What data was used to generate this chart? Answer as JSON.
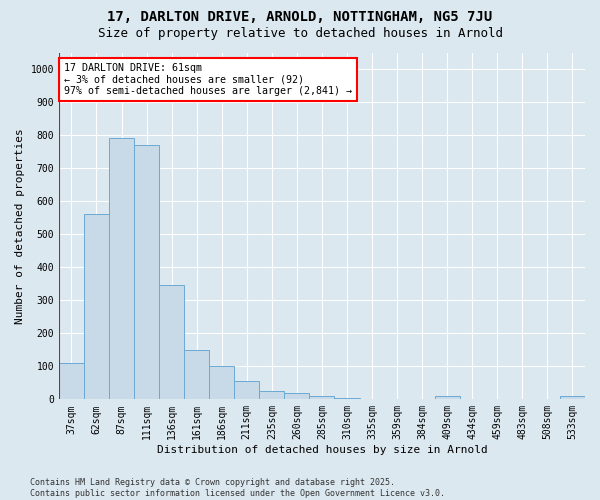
{
  "title_line1": "17, DARLTON DRIVE, ARNOLD, NOTTINGHAM, NG5 7JU",
  "title_line2": "Size of property relative to detached houses in Arnold",
  "xlabel": "Distribution of detached houses by size in Arnold",
  "ylabel": "Number of detached properties",
  "background_color": "#dce8f0",
  "bar_color": "#c8d9e8",
  "bar_edge_color": "#6aaad4",
  "categories": [
    "37sqm",
    "62sqm",
    "87sqm",
    "111sqm",
    "136sqm",
    "161sqm",
    "186sqm",
    "211sqm",
    "235sqm",
    "260sqm",
    "285sqm",
    "310sqm",
    "335sqm",
    "359sqm",
    "384sqm",
    "409sqm",
    "434sqm",
    "459sqm",
    "483sqm",
    "508sqm",
    "533sqm"
  ],
  "values": [
    110,
    560,
    790,
    770,
    345,
    150,
    100,
    55,
    25,
    20,
    10,
    5,
    0,
    0,
    0,
    10,
    0,
    0,
    0,
    0,
    10
  ],
  "ylim": [
    0,
    1050
  ],
  "yticks": [
    0,
    100,
    200,
    300,
    400,
    500,
    600,
    700,
    800,
    900,
    1000
  ],
  "marker_label": "17 DARLTON DRIVE: 61sqm\n← 3% of detached houses are smaller (92)\n97% of semi-detached houses are larger (2,841) →",
  "footer_line1": "Contains HM Land Registry data © Crown copyright and database right 2025.",
  "footer_line2": "Contains public sector information licensed under the Open Government Licence v3.0.",
  "grid_color": "#ffffff",
  "title_fontsize": 10,
  "subtitle_fontsize": 9,
  "tick_fontsize": 7,
  "label_fontsize": 8,
  "footer_fontsize": 6
}
